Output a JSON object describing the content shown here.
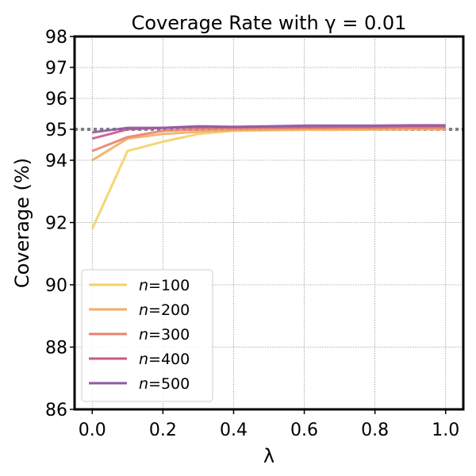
{
  "chart_data": {
    "type": "line",
    "title": "Coverage Rate with γ = 0.01",
    "xlabel": "λ",
    "ylabel": "Coverage (%)",
    "xlim": [
      -0.05,
      1.05
    ],
    "ylim": [
      86,
      98
    ],
    "xticks": [
      0.0,
      0.2,
      0.4,
      0.6,
      0.8,
      1.0
    ],
    "xtick_labels": [
      "0.0",
      "0.2",
      "0.4",
      "0.6",
      "0.8",
      "1.0"
    ],
    "yticks": [
      86,
      88,
      90,
      92,
      94,
      95,
      96,
      97,
      98
    ],
    "ytick_labels": [
      "86",
      "88",
      "90",
      "92",
      "94",
      "95",
      "96",
      "97",
      "98"
    ],
    "y_scale": "nonlinear (below 94 compressed, 2% per grid step; above 94, 1% per grid step)",
    "grid": true,
    "legend_position": "lower-left",
    "reference_line": {
      "y": 95,
      "style": "dotted",
      "color": "#808080"
    },
    "x": [
      0.0,
      0.1,
      0.2,
      0.3,
      0.4,
      0.5,
      0.6,
      0.7,
      0.8,
      0.9,
      1.0
    ],
    "series": [
      {
        "name": "n=100",
        "label_var": "n",
        "label_val": "=100",
        "color": "#f4d166",
        "values": [
          91.8,
          94.3,
          94.6,
          94.85,
          94.95,
          94.97,
          94.98,
          94.98,
          94.99,
          95.0,
          95.0
        ]
      },
      {
        "name": "n=200",
        "label_var": "n",
        "label_val": "=200",
        "color": "#f1ad66",
        "values": [
          94.0,
          94.7,
          94.85,
          94.92,
          94.97,
          94.98,
          95.0,
          95.0,
          95.0,
          95.0,
          95.0
        ]
      },
      {
        "name": "n=300",
        "label_var": "n",
        "label_val": "=300",
        "color": "#e8836f",
        "values": [
          94.3,
          94.75,
          94.95,
          95.0,
          95.02,
          95.03,
          95.04,
          95.04,
          95.04,
          95.05,
          95.05
        ]
      },
      {
        "name": "n=400",
        "label_var": "n",
        "label_val": "=400",
        "color": "#c75a86",
        "values": [
          94.7,
          95.0,
          95.05,
          95.07,
          95.07,
          95.08,
          95.08,
          95.09,
          95.09,
          95.1,
          95.1
        ]
      },
      {
        "name": "n=500",
        "label_var": "n",
        "label_val": "=500",
        "color": "#8e5aa3",
        "values": [
          94.9,
          95.05,
          95.05,
          95.1,
          95.08,
          95.1,
          95.12,
          95.12,
          95.12,
          95.13,
          95.13
        ]
      }
    ]
  }
}
